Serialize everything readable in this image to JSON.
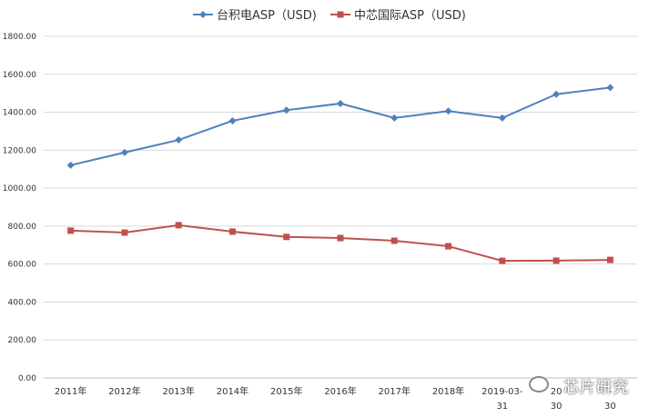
{
  "chart_data": {
    "type": "line",
    "categories": [
      "2011年",
      "2012年",
      "2013年",
      "2014年",
      "2015年",
      "2016年",
      "2017年",
      "2018年",
      "2019-03-31",
      "2019-06-30",
      "2019-09-30"
    ],
    "category_labels": [
      [
        "2011年"
      ],
      [
        "2012年"
      ],
      [
        "2013年"
      ],
      [
        "2014年"
      ],
      [
        "2015年"
      ],
      [
        "2016年"
      ],
      [
        "2017年"
      ],
      [
        "2018年"
      ],
      [
        "2019-03-",
        "31"
      ],
      [
        "20",
        "30"
      ],
      [
        "-",
        "30"
      ]
    ],
    "series": [
      {
        "name": "台积电ASP（USD)",
        "color": "#4F81BD",
        "marker": "diamond",
        "values": [
          1121,
          1188,
          1254,
          1355,
          1411,
          1446,
          1370,
          1406,
          1370,
          1495,
          1530
        ]
      },
      {
        "name": "中芯国际ASP（USD)",
        "color": "#C0504D",
        "marker": "square",
        "values": [
          776,
          766,
          805,
          771,
          743,
          737,
          723,
          694,
          617,
          618,
          622
        ]
      }
    ],
    "y_ticks": [
      "0.00",
      "200.00",
      "400.00",
      "600.00",
      "800.00",
      "1000.00",
      "1200.00",
      "1400.00",
      "1600.00",
      "1800.00"
    ],
    "ylim": [
      0,
      1800
    ],
    "grid": true,
    "legend_position": "top-center"
  },
  "watermark": {
    "text": "芯片研究"
  }
}
